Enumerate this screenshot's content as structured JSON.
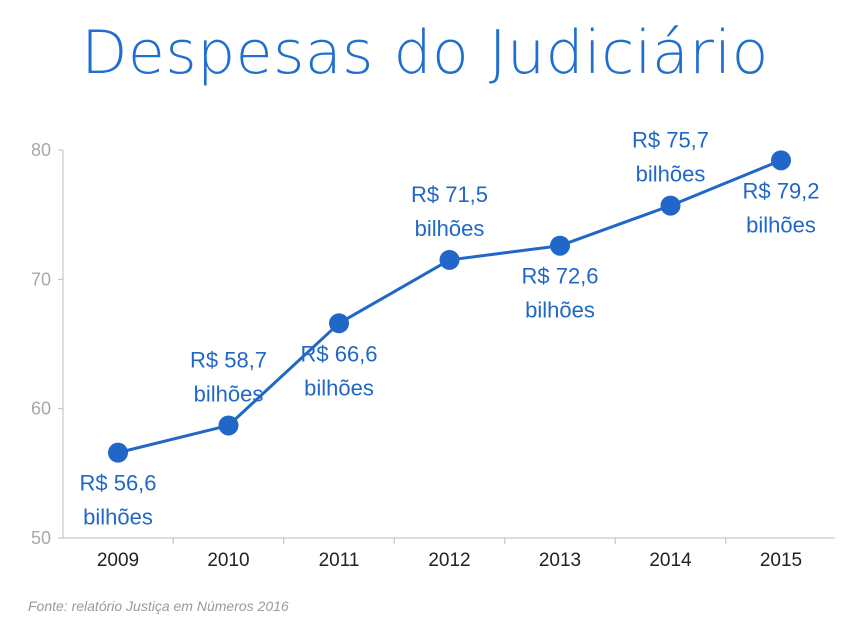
{
  "chart_data": {
    "type": "line",
    "title": "Despesas do Judiciário",
    "xlabel": "",
    "ylabel": "",
    "categories": [
      "2009",
      "2010",
      "2011",
      "2012",
      "2013",
      "2014",
      "2015"
    ],
    "series": [
      {
        "values": [
          56.6,
          58.7,
          66.6,
          71.5,
          72.6,
          75.7,
          79.2
        ]
      }
    ],
    "data_labels": [
      {
        "line1": "R$ 56,6",
        "line2": "bilhões",
        "placement": "below"
      },
      {
        "line1": "R$ 58,7",
        "line2": "bilhões",
        "placement": "above"
      },
      {
        "line1": "R$ 66,6",
        "line2": "bilhões",
        "placement": "below"
      },
      {
        "line1": "R$ 71,5",
        "line2": "bilhões",
        "placement": "above"
      },
      {
        "line1": "R$ 72,6",
        "line2": "bilhões",
        "placement": "below"
      },
      {
        "line1": "R$ 75,7",
        "line2": "bilhões",
        "placement": "above"
      },
      {
        "line1": "R$ 79,2",
        "line2": "bilhões",
        "placement": "below"
      }
    ],
    "y_ticks": [
      "50",
      "60",
      "70",
      "80"
    ],
    "ylim": [
      50,
      80
    ],
    "grid": false,
    "legend": "none",
    "line_color": "#2167c8",
    "label_color": "#2167c8"
  },
  "source_note": "Fonte: relatório Justiça em Números 2016"
}
